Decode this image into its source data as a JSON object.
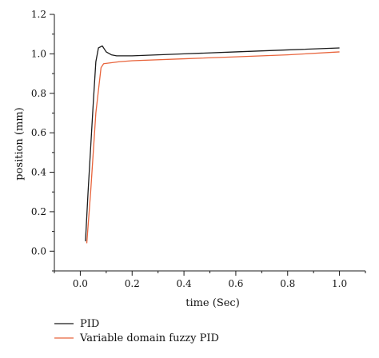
{
  "chart_data": {
    "type": "line",
    "title": "",
    "xlabel": "time (Sec)",
    "ylabel": "position (mm)",
    "xlim": [
      -0.1,
      1.1
    ],
    "ylim": [
      -0.1,
      1.2
    ],
    "xticks": [
      "0.0",
      "0.2",
      "0.4",
      "0.6",
      "0.8",
      "1.0"
    ],
    "yticks": [
      "0.0",
      "0.2",
      "0.4",
      "0.6",
      "0.8",
      "1.0",
      "1.2"
    ],
    "grid": false,
    "legend_position": "bottom-left",
    "series": [
      {
        "name": "PID",
        "color": "#1a1a1a",
        "x": [
          0.02,
          0.03,
          0.05,
          0.06,
          0.07,
          0.085,
          0.1,
          0.12,
          0.14,
          0.2,
          0.4,
          0.6,
          0.8,
          1.0
        ],
        "y": [
          0.05,
          0.3,
          0.75,
          0.96,
          1.03,
          1.04,
          1.01,
          0.995,
          0.99,
          0.99,
          1.0,
          1.01,
          1.02,
          1.03
        ]
      },
      {
        "name": "Variable domain fuzzy PID",
        "color": "#e8643c",
        "x": [
          0.025,
          0.04,
          0.06,
          0.08,
          0.09,
          0.12,
          0.15,
          0.2,
          0.4,
          0.6,
          0.8,
          1.0
        ],
        "y": [
          0.04,
          0.3,
          0.7,
          0.93,
          0.95,
          0.955,
          0.96,
          0.965,
          0.975,
          0.985,
          0.995,
          1.01
        ]
      }
    ]
  }
}
